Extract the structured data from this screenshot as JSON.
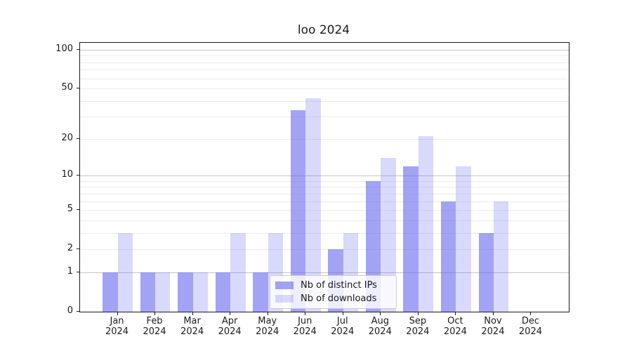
{
  "chart_data": {
    "type": "bar",
    "title": "loo 2024",
    "categories": [
      "Jan",
      "Feb",
      "Mar",
      "Apr",
      "May",
      "Jun",
      "Jul",
      "Aug",
      "Sep",
      "Oct",
      "Nov",
      "Dec"
    ],
    "category_year": "2024",
    "series": [
      {
        "name": "Nb of distinct IPs",
        "color": "#6666ee",
        "alpha": 0.6,
        "values": [
          1,
          1,
          1,
          1,
          1,
          34,
          2,
          9,
          12,
          6,
          3,
          0
        ]
      },
      {
        "name": "Nb of downloads",
        "color": "#6666ee",
        "alpha": 0.25,
        "values": [
          3,
          1,
          1,
          3,
          3,
          42,
          3,
          14,
          21,
          12,
          6,
          0
        ]
      }
    ],
    "yscale": "log1p",
    "ylim": [
      0,
      113
    ],
    "ytick_labels": [
      0,
      1,
      2,
      5,
      10,
      20,
      50,
      100
    ],
    "grid": {
      "major_values": [
        1,
        10,
        100
      ],
      "minor_values": [
        2,
        3,
        4,
        5,
        6,
        7,
        8,
        9,
        20,
        30,
        40,
        50,
        60,
        70,
        80,
        90
      ],
      "major_color": "#c6c6c6",
      "minor_color": "#ebebeb"
    },
    "legend": {
      "position": "inside-bottom-center"
    },
    "xlabel": "",
    "ylabel": ""
  }
}
